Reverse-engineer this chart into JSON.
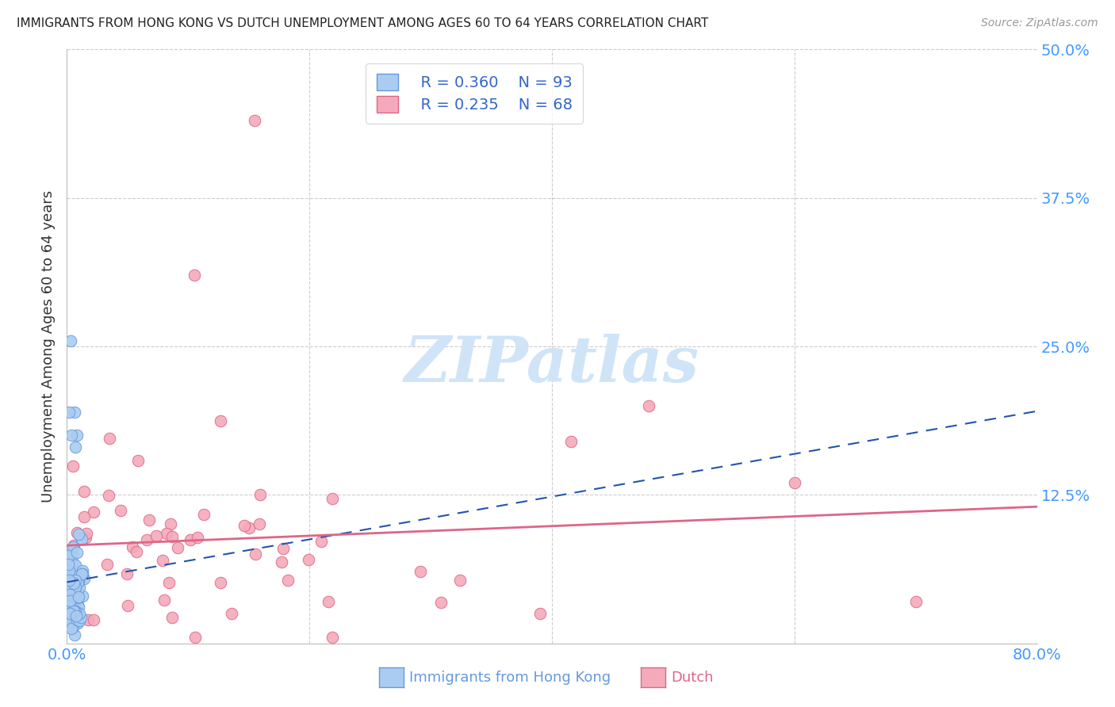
{
  "title": "IMMIGRANTS FROM HONG KONG VS DUTCH UNEMPLOYMENT AMONG AGES 60 TO 64 YEARS CORRELATION CHART",
  "source": "Source: ZipAtlas.com",
  "ylabel": "Unemployment Among Ages 60 to 64 years",
  "xlim": [
    0.0,
    0.8
  ],
  "ylim": [
    0.0,
    0.5
  ],
  "ytick_positions": [
    0.125,
    0.25,
    0.375,
    0.5
  ],
  "ytick_labels": [
    "12.5%",
    "25.0%",
    "37.5%",
    "50.0%"
  ],
  "watermark": "ZIPatlas",
  "series": [
    {
      "name": "Immigrants from Hong Kong",
      "R": 0.36,
      "N": 93,
      "color": "#aaccf0",
      "edge_color": "#6699dd",
      "trend_color": "#2255aa",
      "trend_style": "--"
    },
    {
      "name": "Dutch",
      "R": 0.235,
      "N": 68,
      "color": "#f4aabb",
      "edge_color": "#dd6688",
      "trend_color": "#dd6688",
      "trend_style": "-"
    }
  ],
  "title_color": "#222222",
  "axis_color": "#4499ff",
  "grid_color": "#cccccc",
  "watermark_color": "#d0e4f8",
  "background_color": "#ffffff"
}
